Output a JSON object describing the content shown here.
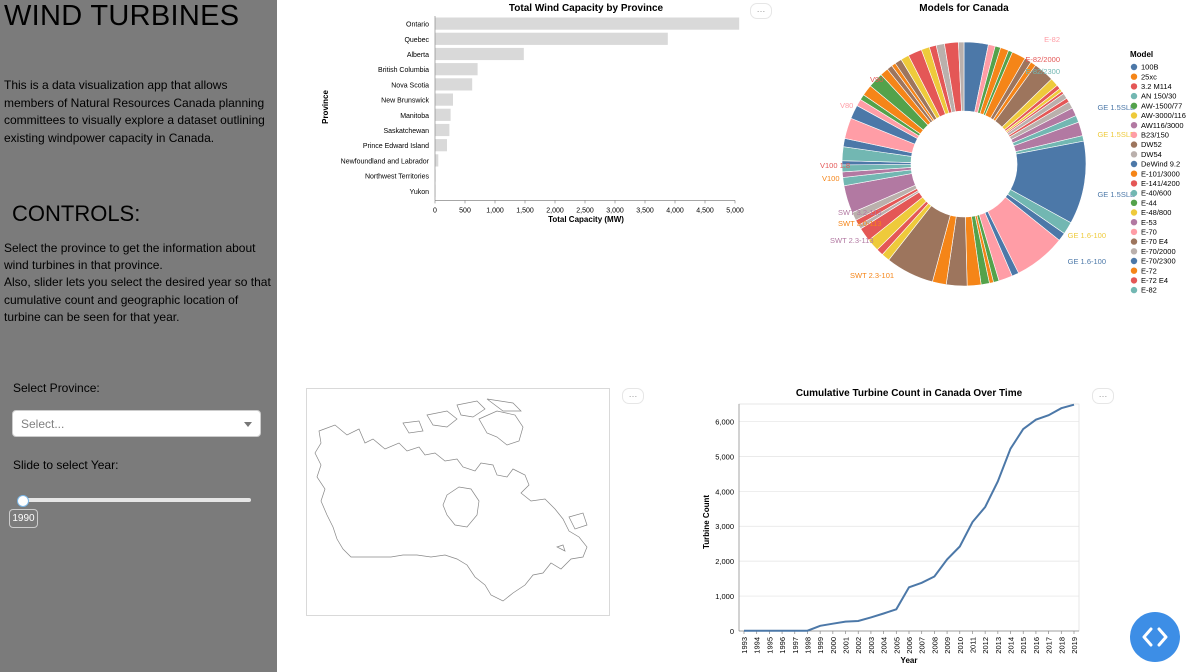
{
  "sidebar": {
    "title": "WIND TURBINES",
    "intro": "This is a data visualization app that allows members of Natural Resources Canada planning committees to visually explore a dataset outlining existing windpower capacity in Canada.",
    "controls_heading": "CONTROLS:",
    "controls_desc_1": "Select the province to get the information about wind turbines in that province.",
    "controls_desc_2": "Also, slider lets you select the desired year so that cumulative count and geographic location of turbine can be seen for that year.",
    "province_label": "Select Province:",
    "province_placeholder": "Select...",
    "year_label": "Slide to select Year:",
    "year_value": "1990"
  },
  "colors": {
    "sidebar_bg": "#7b7b7b",
    "bar_fill": "#d9d9d9",
    "line": "#4c78a8",
    "nav_button": "#3d8ee6"
  },
  "icons": {
    "action_menu": "…",
    "nav_button": "code-brackets-icon"
  },
  "chart_data": [
    {
      "type": "bar",
      "title": "Total Wind Capacity by Province",
      "xlabel": "Total Capacity (MW)",
      "ylabel": "Province",
      "categories": [
        "Ontario",
        "Quebec",
        "Alberta",
        "British Columbia",
        "Nova Scotia",
        "New Brunswick",
        "Manitoba",
        "Saskatchewan",
        "Prince Edward Island",
        "Newfoundland and Labrador",
        "Northwest Territories",
        "Yukon"
      ],
      "values": [
        5070,
        3880,
        1480,
        710,
        620,
        300,
        260,
        240,
        200,
        55,
        9,
        1
      ],
      "xlim": [
        0,
        5000
      ],
      "xticks": [
        "0",
        "500",
        "1,000",
        "1,500",
        "2,000",
        "2,500",
        "3,000",
        "3,500",
        "4,000",
        "4,500",
        "5,000"
      ]
    },
    {
      "type": "pie",
      "title": "Models for Canada",
      "legend_title": "Model",
      "legend": [
        {
          "name": "100B",
          "color": "#4c78a8"
        },
        {
          "name": "25xc",
          "color": "#f58518"
        },
        {
          "name": "3.2 M114",
          "color": "#e45756"
        },
        {
          "name": "AN 150/30",
          "color": "#72b7b2"
        },
        {
          "name": "AW-1500/77",
          "color": "#54a24b"
        },
        {
          "name": "AW-3000/116",
          "color": "#eeca3b"
        },
        {
          "name": "AW116/3000",
          "color": "#b279a2"
        },
        {
          "name": "B23/150",
          "color": "#ff9da6"
        },
        {
          "name": "DW52",
          "color": "#9d755d"
        },
        {
          "name": "DW54",
          "color": "#bab0ac"
        },
        {
          "name": "DeWind 9.2",
          "color": "#4c78a8"
        },
        {
          "name": "E-101/3000",
          "color": "#f58518"
        },
        {
          "name": "E-141/4200",
          "color": "#e45756"
        },
        {
          "name": "E-40/600",
          "color": "#72b7b2"
        },
        {
          "name": "E-44",
          "color": "#54a24b"
        },
        {
          "name": "E-48/800",
          "color": "#eeca3b"
        },
        {
          "name": "E-53",
          "color": "#b279a2"
        },
        {
          "name": "E-70",
          "color": "#ff9da6"
        },
        {
          "name": "E-70 E4",
          "color": "#9d755d"
        },
        {
          "name": "E-70/2000",
          "color": "#bab0ac"
        },
        {
          "name": "E-70/2300",
          "color": "#4c78a8"
        },
        {
          "name": "E-72",
          "color": "#f58518"
        },
        {
          "name": "E-72 E4",
          "color": "#e45756"
        },
        {
          "name": "E-82",
          "color": "#72b7b2"
        }
      ],
      "slice_labels": [
        "GE 1.5SLE",
        "GE 1.5SLE",
        "GE 1.5SLE",
        "GE 1.6-100",
        "GE 1.6-100",
        "SWT 2.3-101",
        "SWT 2.3-113",
        "SWT 3.0-113",
        "SWT 3.2-113",
        "V100",
        "V100 1.8",
        "V80",
        "V90",
        "E-82",
        "E-82/2000",
        "E-82/2300"
      ]
    },
    {
      "type": "line",
      "title": "Cumulative Turbine Count in Canada Over Time",
      "xlabel": "Year",
      "ylabel": "Turbine Count",
      "x": [
        "1993",
        "1994",
        "1995",
        "1996",
        "1997",
        "1998",
        "1999",
        "2000",
        "2001",
        "2002",
        "2003",
        "2004",
        "2005",
        "2006",
        "2007",
        "2008",
        "2009",
        "2010",
        "2011",
        "2012",
        "2013",
        "2014",
        "2015",
        "2016",
        "2017",
        "2018",
        "2019"
      ],
      "values": [
        5,
        5,
        5,
        5,
        5,
        10,
        150,
        210,
        270,
        285,
        390,
        500,
        620,
        1250,
        1380,
        1560,
        2050,
        2420,
        3120,
        3550,
        4280,
        5220,
        5780,
        6050,
        6180,
        6380,
        6480
      ],
      "ylim": [
        0,
        6500
      ],
      "yticks": [
        "0",
        "1,000",
        "2,000",
        "3,000",
        "4,000",
        "5,000",
        "6,000"
      ]
    }
  ]
}
